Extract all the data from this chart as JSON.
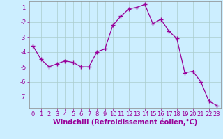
{
  "x": [
    0,
    1,
    2,
    3,
    4,
    5,
    6,
    7,
    8,
    9,
    10,
    11,
    12,
    13,
    14,
    15,
    16,
    17,
    18,
    19,
    20,
    21,
    22,
    23
  ],
  "y": [
    -3.6,
    -4.5,
    -5.0,
    -4.8,
    -4.6,
    -4.7,
    -5.0,
    -5.0,
    -4.0,
    -3.8,
    -2.2,
    -1.6,
    -1.1,
    -1.0,
    -0.8,
    -2.1,
    -1.8,
    -2.6,
    -3.1,
    -5.4,
    -5.3,
    -6.0,
    -7.3,
    -7.6
  ],
  "line_color": "#990099",
  "marker": "+",
  "markersize": 4.0,
  "linewidth": 0.9,
  "bg_color": "#cceeff",
  "grid_color": "#aacccc",
  "xlabel": "Windchill (Refroidissement éolien,°C)",
  "xlabel_color": "#990099",
  "tick_color": "#990099",
  "ylim": [
    -7.8,
    -0.6
  ],
  "xlim": [
    -0.5,
    23.5
  ],
  "yticks": [
    -7,
    -6,
    -5,
    -4,
    -3,
    -2,
    -1
  ],
  "xticks": [
    0,
    1,
    2,
    3,
    4,
    5,
    6,
    7,
    8,
    9,
    10,
    11,
    12,
    13,
    14,
    15,
    16,
    17,
    18,
    19,
    20,
    21,
    22,
    23
  ],
  "xlabel_fontsize": 7.0,
  "tick_fontsize": 6.0,
  "spine_color": "#888888"
}
